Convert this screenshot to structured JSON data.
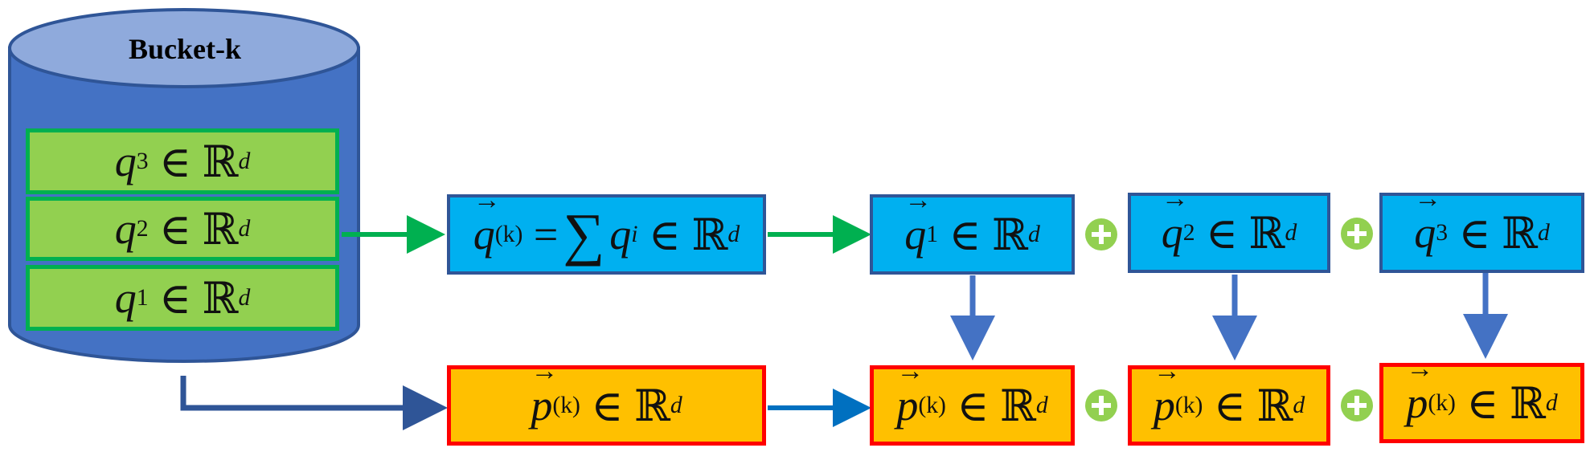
{
  "bucket": {
    "title": "Bucket-k",
    "items": [
      {
        "var": "q",
        "index": "3",
        "set": "ℝ",
        "dim": "d"
      },
      {
        "var": "q",
        "index": "2",
        "set": "ℝ",
        "dim": "d"
      },
      {
        "var": "q",
        "index": "1",
        "set": "ℝ",
        "dim": "d"
      }
    ]
  },
  "symbols": {
    "in": "∈",
    "equals": "=",
    "sum": "∑",
    "set": "ℝ",
    "dim": "d"
  },
  "summary_query": {
    "var": "q",
    "subscript": "(k)",
    "sum_var": "q",
    "sum_index": "i"
  },
  "query_vectors": [
    {
      "var": "q",
      "index": "1"
    },
    {
      "var": "q",
      "index": "2"
    },
    {
      "var": "q",
      "index": "3"
    }
  ],
  "prototype": {
    "var": "p",
    "subscript": "(k)"
  },
  "prototype_copies": [
    {
      "var": "p",
      "subscript": "(k)"
    },
    {
      "var": "p",
      "subscript": "(k)"
    },
    {
      "var": "p",
      "subscript": "(k)"
    }
  ],
  "colors": {
    "bucket_fill": "#4472c4",
    "bucket_top": "#8faadc",
    "bucket_stroke": "#2f5597",
    "query_fill": "#00b0f0",
    "prototype_fill": "#ffc000",
    "prototype_border": "#ff0000",
    "item_fill": "#92d050",
    "item_border": "#00b050",
    "arrow_green": "#00b050",
    "arrow_navy": "#2f5597",
    "arrow_blue": "#0070c0",
    "arrow_down": "#4472c4"
  }
}
